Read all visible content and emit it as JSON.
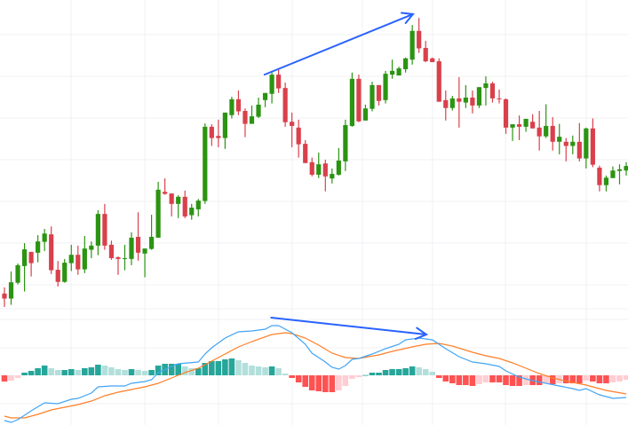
{
  "chart_data": [
    {
      "type": "candlestick",
      "grid": true,
      "colors": {
        "up": "#2b9412",
        "down": "#d9404b",
        "grid": "#f0f1f4"
      },
      "candles_ohlc": [
        [
          77.9,
          79.4,
          74.7,
          76.7
        ],
        [
          76.7,
          83.2,
          75.2,
          80.6
        ],
        [
          80.5,
          85.1,
          80.1,
          84.7
        ],
        [
          84.5,
          90.0,
          78.4,
          88.5
        ],
        [
          87.9,
          87.9,
          82.0,
          85.2
        ],
        [
          87.7,
          91.9,
          85.4,
          90.4
        ],
        [
          90.3,
          93.4,
          88.1,
          92.3
        ],
        [
          92.1,
          94.0,
          82.6,
          83.5
        ],
        [
          83.6,
          85.7,
          79.6,
          80.7
        ],
        [
          80.7,
          86.2,
          80.5,
          85.3
        ],
        [
          85.2,
          89.6,
          83.3,
          87.2
        ],
        [
          87.2,
          89.4,
          82.4,
          83.7
        ],
        [
          83.7,
          91.7,
          82.8,
          88.7
        ],
        [
          88.4,
          90.4,
          86.4,
          89.4
        ],
        [
          89.4,
          97.9,
          87.1,
          97.0
        ],
        [
          97.0,
          99.4,
          88.4,
          89.4
        ],
        [
          89.6,
          90.6,
          86.0,
          86.4
        ],
        [
          86.6,
          86.8,
          82.4,
          86.2
        ],
        [
          86.2,
          89.6,
          83.5,
          86.4
        ],
        [
          86.2,
          92.6,
          84.7,
          91.3
        ],
        [
          91.5,
          97.4,
          85.8,
          87.7
        ],
        [
          87.5,
          88.7,
          81.8,
          88.7
        ],
        [
          88.6,
          96.8,
          88.4,
          91.5
        ],
        [
          91.3,
          104.7,
          91.3,
          102.8
        ],
        [
          102.3,
          105.5,
          101.6,
          101.8
        ],
        [
          101.9,
          101.9,
          96.4,
          99.4
        ],
        [
          99.4,
          101.5,
          96.0,
          101.1
        ],
        [
          101.1,
          102.6,
          96.0,
          96.4
        ],
        [
          96.7,
          99.4,
          95.6,
          98.5
        ],
        [
          98.1,
          100.6,
          96.4,
          100.2
        ],
        [
          100.1,
          118.7,
          99.4,
          117.9
        ],
        [
          117.9,
          118.5,
          113.3,
          115.2
        ],
        [
          115.7,
          119.6,
          113.0,
          115.2
        ],
        [
          115.2,
          121.3,
          112.6,
          121.3
        ],
        [
          120.7,
          125.1,
          119.9,
          124.5
        ],
        [
          124.5,
          126.6,
          120.7,
          121.6
        ],
        [
          121.7,
          122.3,
          115.4,
          118.6
        ],
        [
          118.6,
          123.0,
          118.6,
          120.4
        ],
        [
          120.3,
          124.9,
          120.0,
          123.2
        ],
        [
          124.3,
          126.0,
          122.6,
          126.0
        ],
        [
          125.8,
          131.1,
          123.5,
          130.4
        ],
        [
          130.4,
          131.7,
          126.0,
          127.1
        ],
        [
          127.2,
          128.5,
          117.9,
          119.0
        ],
        [
          119.1,
          121.3,
          113.0,
          118.1
        ],
        [
          117.7,
          119.6,
          110.5,
          113.7
        ],
        [
          113.8,
          114.7,
          109.2,
          109.2
        ],
        [
          109.4,
          110.5,
          106.0,
          106.4
        ],
        [
          106.4,
          111.7,
          105.6,
          108.9
        ],
        [
          109.1,
          110.0,
          102.4,
          106.0
        ],
        [
          105.5,
          107.9,
          104.3,
          106.6
        ],
        [
          106.4,
          112.8,
          106.2,
          109.8
        ],
        [
          109.6,
          119.6,
          107.3,
          118.3
        ],
        [
          118.1,
          130.9,
          117.9,
          129.4
        ],
        [
          129.4,
          130.4,
          119.0,
          119.2
        ],
        [
          119.4,
          123.2,
          119.4,
          122.3
        ],
        [
          122.2,
          128.7,
          121.6,
          127.9
        ],
        [
          127.9,
          127.9,
          123.0,
          124.1
        ],
        [
          124.3,
          131.3,
          123.5,
          130.6
        ],
        [
          130.4,
          134.0,
          129.4,
          131.3
        ],
        [
          130.2,
          132.3,
          130.2,
          131.9
        ],
        [
          131.7,
          134.5,
          130.9,
          134.3
        ],
        [
          134.0,
          142.3,
          132.8,
          140.9
        ],
        [
          140.9,
          144.0,
          135.6,
          136.7
        ],
        [
          136.8,
          138.5,
          133.4,
          133.6
        ],
        [
          134.3,
          134.5,
          133.4,
          133.4
        ],
        [
          133.6,
          134.3,
          123.9,
          123.9
        ],
        [
          124.3,
          126.6,
          119.4,
          122.4
        ],
        [
          122.4,
          125.3,
          121.8,
          124.7
        ],
        [
          124.7,
          129.8,
          117.7,
          123.9
        ],
        [
          123.7,
          127.9,
          122.4,
          124.9
        ],
        [
          124.9,
          126.6,
          121.1,
          123.0
        ],
        [
          123.0,
          127.4,
          122.4,
          127.4
        ],
        [
          127.2,
          130.0,
          123.0,
          128.3
        ],
        [
          128.3,
          128.7,
          123.7,
          124.7
        ],
        [
          124.7,
          126.8,
          123.5,
          124.6
        ],
        [
          124.5,
          124.7,
          116.2,
          117.7
        ],
        [
          117.7,
          118.5,
          114.5,
          118.5
        ],
        [
          118.5,
          120.6,
          114.7,
          117.9
        ],
        [
          117.9,
          119.8,
          116.7,
          119.8
        ],
        [
          119.1,
          120.9,
          117.5,
          117.5
        ],
        [
          117.7,
          121.7,
          112.2,
          115.6
        ],
        [
          115.6,
          123.3,
          115.2,
          118.1
        ],
        [
          118.1,
          120.2,
          112.2,
          114.3
        ],
        [
          114.3,
          118.6,
          111.3,
          115.5
        ],
        [
          114.3,
          115.2,
          109.6,
          113.3
        ],
        [
          113.3,
          115.8,
          111.3,
          114.3
        ],
        [
          114.3,
          118.8,
          109.6,
          110.3
        ],
        [
          110.3,
          117.7,
          107.9,
          117.5
        ],
        [
          117.5,
          119.9,
          108.2,
          108.8
        ],
        [
          108.1,
          108.6,
          102.4,
          103.9
        ],
        [
          103.9,
          106.2,
          102.4,
          105.7
        ],
        [
          105.6,
          108.4,
          105.6,
          107.4
        ],
        [
          107.3,
          108.9,
          104.1,
          107.7
        ],
        [
          107.4,
          109.4,
          106.2,
          108.5
        ]
      ],
      "annotations": [
        {
          "type": "arrow",
          "color": "#2962ff",
          "from": [
            38.9,
            130.4
          ],
          "to": [
            61.1,
            144.9
          ]
        }
      ]
    },
    {
      "type": "macd",
      "grid": true,
      "colors": {
        "macd": "#42a5f5",
        "signal": "#ff7f27",
        "hist_up_strong": "#26a69a",
        "hist_up_weak": "#b2dfdb",
        "hist_down_strong": "#ff5252",
        "hist_down_weak": "#ffcdd2"
      },
      "histogram": [
        -0.7,
        -0.6,
        -0.3,
        0.3,
        0.5,
        0.8,
        1.1,
        0.8,
        0.6,
        0.6,
        0.7,
        0.6,
        0.8,
        0.9,
        1.2,
        1.1,
        0.9,
        0.7,
        0.6,
        0.7,
        0.6,
        0.5,
        0.6,
        1.1,
        1.3,
        1.3,
        1.3,
        1.0,
        0.8,
        0.8,
        1.4,
        1.6,
        1.6,
        1.8,
        1.9,
        1.7,
        1.4,
        1.1,
        1.0,
        0.9,
        1.0,
        0.8,
        0.2,
        -0.3,
        -0.8,
        -1.3,
        -1.7,
        -1.8,
        -1.9,
        -1.9,
        -1.7,
        -1.2,
        -0.4,
        -0.2,
        0.03,
        0.3,
        0.3,
        0.6,
        0.7,
        0.7,
        0.8,
        1.0,
        0.9,
        0.7,
        0.4,
        -0.3,
        -0.7,
        -0.9,
        -1.1,
        -1.1,
        -1.2,
        -1.0,
        -0.8,
        -0.8,
        -0.8,
        -1.1,
        -1.2,
        -1.2,
        -1.1,
        -1.1,
        -1.1,
        -0.9,
        -1.0,
        -0.9,
        -0.9,
        -0.9,
        -0.9,
        -0.6,
        -0.7,
        -0.9,
        -0.9,
        -0.8,
        -0.7,
        -0.5
      ],
      "macd_line": [
        [
          0,
          -5.1
        ],
        [
          1,
          -5.3
        ],
        [
          2,
          -5.0
        ],
        [
          4,
          -4.0
        ],
        [
          6,
          -3.1
        ],
        [
          8,
          -3.2
        ],
        [
          10,
          -2.7
        ],
        [
          11,
          -2.6
        ],
        [
          13,
          -2.0
        ],
        [
          14,
          -1.3
        ],
        [
          16,
          -1.2
        ],
        [
          18,
          -1.2
        ],
        [
          19,
          -0.9
        ],
        [
          21,
          -0.7
        ],
        [
          22,
          -0.5
        ],
        [
          23,
          0.3
        ],
        [
          25,
          1.0
        ],
        [
          26,
          1.3
        ],
        [
          29,
          1.5
        ],
        [
          30,
          2.4
        ],
        [
          31,
          3.1
        ],
        [
          33,
          4.2
        ],
        [
          35,
          4.9
        ],
        [
          37,
          5.0
        ],
        [
          39,
          5.2
        ],
        [
          40,
          5.6
        ],
        [
          41,
          5.6
        ],
        [
          43,
          4.8
        ],
        [
          45,
          3.5
        ],
        [
          46,
          2.5
        ],
        [
          48,
          1.5
        ],
        [
          49,
          0.9
        ],
        [
          50,
          0.7
        ],
        [
          51,
          1.1
        ],
        [
          52,
          1.8
        ],
        [
          53,
          1.9
        ],
        [
          55,
          2.4
        ],
        [
          57,
          3.0
        ],
        [
          59,
          3.5
        ],
        [
          60,
          4.0
        ],
        [
          62,
          4.2
        ],
        [
          63,
          4.1
        ],
        [
          64,
          4.0
        ],
        [
          66,
          3.0
        ],
        [
          68,
          2.1
        ],
        [
          70,
          1.5
        ],
        [
          72,
          1.3
        ],
        [
          74,
          1.0
        ],
        [
          75,
          0.5
        ],
        [
          77,
          -0.2
        ],
        [
          79,
          -0.6
        ],
        [
          81,
          -0.9
        ],
        [
          83,
          -1.2
        ],
        [
          85,
          -1.5
        ],
        [
          86,
          -1.7
        ],
        [
          87,
          -1.5
        ],
        [
          89,
          -2.2
        ],
        [
          91,
          -2.6
        ],
        [
          93,
          -2.5
        ]
      ],
      "signal_line": [
        [
          0,
          -4.6
        ],
        [
          1,
          -4.8
        ],
        [
          3,
          -4.8
        ],
        [
          5,
          -4.4
        ],
        [
          7,
          -3.9
        ],
        [
          9,
          -3.6
        ],
        [
          11,
          -3.3
        ],
        [
          13,
          -2.9
        ],
        [
          15,
          -2.3
        ],
        [
          17,
          -1.9
        ],
        [
          19,
          -1.6
        ],
        [
          21,
          -1.3
        ],
        [
          23,
          -0.9
        ],
        [
          25,
          -0.3
        ],
        [
          27,
          0.3
        ],
        [
          29,
          0.8
        ],
        [
          31,
          1.6
        ],
        [
          33,
          2.4
        ],
        [
          35,
          3.2
        ],
        [
          37,
          3.8
        ],
        [
          40,
          4.6
        ],
        [
          42,
          4.8
        ],
        [
          43,
          4.7
        ],
        [
          45,
          4.2
        ],
        [
          47,
          3.4
        ],
        [
          49,
          2.5
        ],
        [
          51,
          2.0
        ],
        [
          53,
          1.9
        ],
        [
          56,
          2.3
        ],
        [
          58,
          2.7
        ],
        [
          61,
          3.2
        ],
        [
          63,
          3.5
        ],
        [
          65,
          3.6
        ],
        [
          67,
          3.3
        ],
        [
          70,
          2.6
        ],
        [
          72,
          2.2
        ],
        [
          74,
          1.9
        ],
        [
          76,
          1.4
        ],
        [
          78,
          0.8
        ],
        [
          80,
          0.2
        ],
        [
          82,
          -0.3
        ],
        [
          85,
          -0.8
        ],
        [
          87,
          -1.1
        ],
        [
          90,
          -1.7
        ],
        [
          93,
          -2.1
        ]
      ],
      "annotations": [
        {
          "type": "arrow",
          "color": "#2962ff",
          "from": [
            39.9,
            6.5
          ],
          "to": [
            63.1,
            4.6
          ]
        }
      ]
    }
  ]
}
